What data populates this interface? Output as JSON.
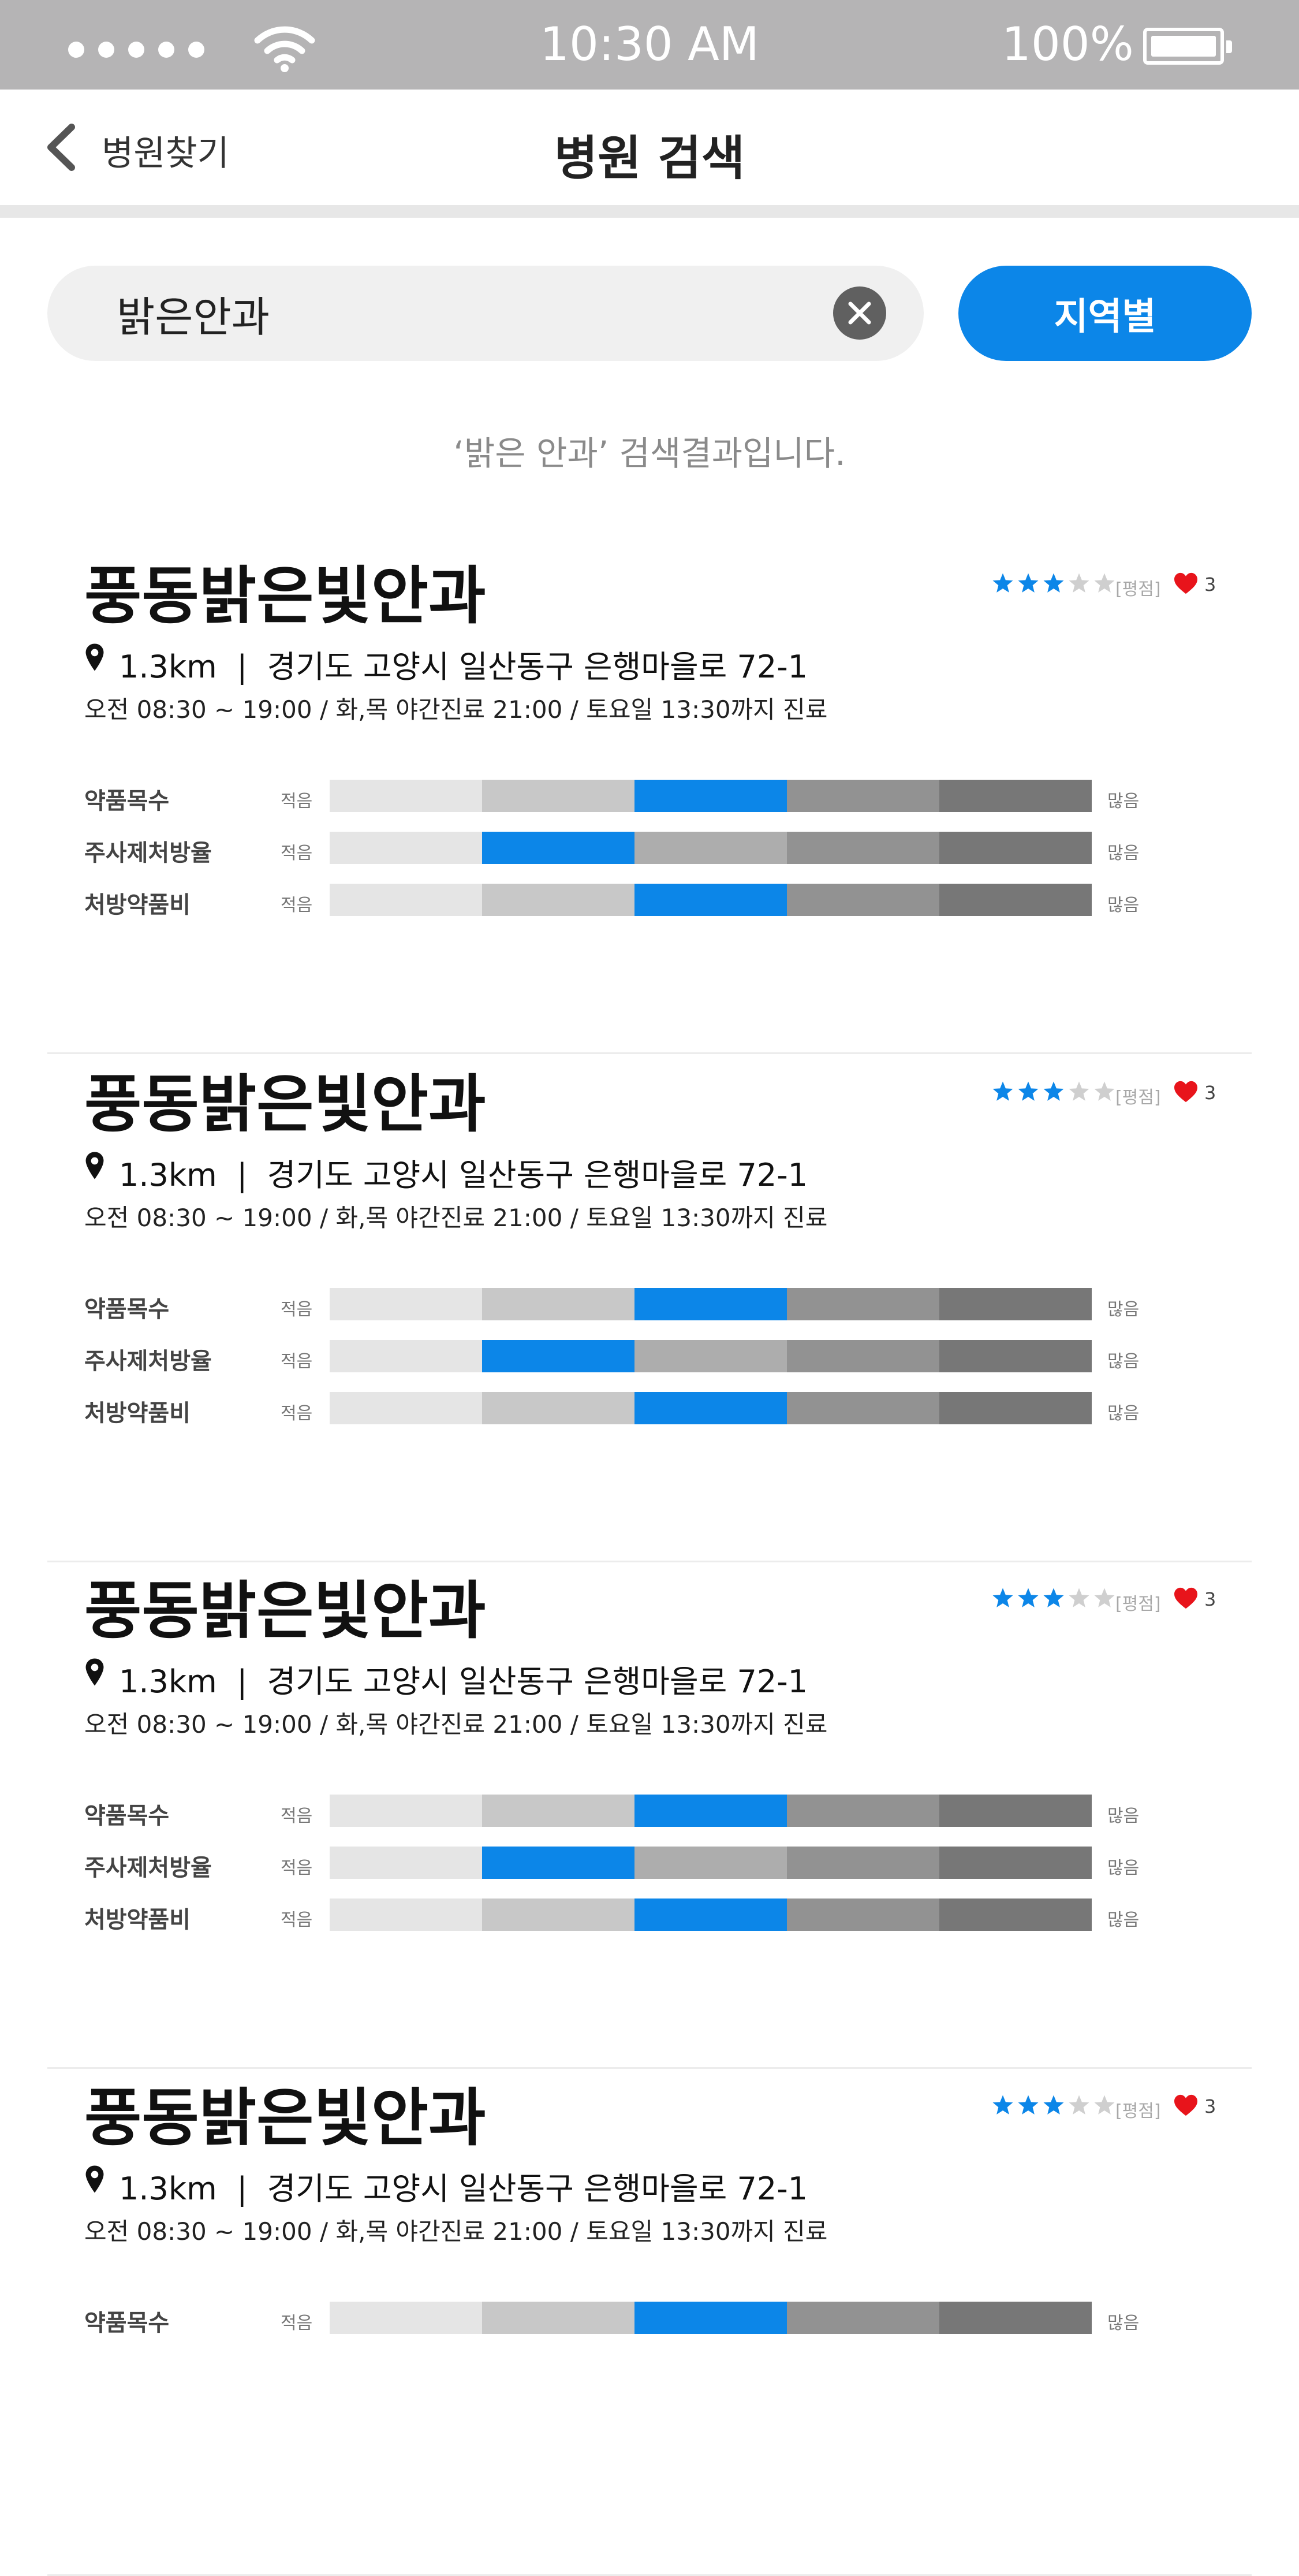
{
  "status_bar": {
    "time": "10:30 AM",
    "battery": "100%"
  },
  "nav": {
    "back_label": "병원찾기",
    "title": "병원 검색"
  },
  "search": {
    "query": "밝은안과",
    "region_button": "지역별",
    "result_message": "‘밝은 안과’ 검색결과입니다."
  },
  "colors": {
    "accent": "#0c86e8",
    "heart": "#e8141b",
    "status_bar": "#b5b4b5"
  },
  "hospitals": [
    {
      "name": "풍동밝은빛안과",
      "rating": 3,
      "max_rating": 5,
      "rating_label": "[평점]",
      "likes": "3",
      "distance": "1.3km",
      "address": "경기도 고양시 일산동구 은행마을로 72-1",
      "hours": "오전 08:30 ~ 19:00 / 화,목 야간진료 21:00 / 토요일 13:30까지 진료",
      "metrics": [
        {
          "label": "약품목수",
          "less": "적음",
          "more": "많음",
          "level": 2
        },
        {
          "label": "주사제처방율",
          "less": "적음",
          "more": "많음",
          "level": 1
        },
        {
          "label": "처방약품비",
          "less": "적음",
          "more": "많음",
          "level": 2
        }
      ]
    },
    {
      "name": "풍동밝은빛안과",
      "rating": 3,
      "max_rating": 5,
      "rating_label": "[평점]",
      "likes": "3",
      "distance": "1.3km",
      "address": "경기도 고양시 일산동구 은행마을로 72-1",
      "hours": "오전 08:30 ~ 19:00 / 화,목 야간진료 21:00 / 토요일 13:30까지 진료",
      "metrics": [
        {
          "label": "약품목수",
          "less": "적음",
          "more": "많음",
          "level": 2
        },
        {
          "label": "주사제처방율",
          "less": "적음",
          "more": "많음",
          "level": 1
        },
        {
          "label": "처방약품비",
          "less": "적음",
          "more": "많음",
          "level": 2
        }
      ]
    },
    {
      "name": "풍동밝은빛안과",
      "rating": 3,
      "max_rating": 5,
      "rating_label": "[평점]",
      "likes": "3",
      "distance": "1.3km",
      "address": "경기도 고양시 일산동구 은행마을로 72-1",
      "hours": "오전 08:30 ~ 19:00 / 화,목 야간진료 21:00 / 토요일 13:30까지 진료",
      "metrics": [
        {
          "label": "약품목수",
          "less": "적음",
          "more": "많음",
          "level": 2
        },
        {
          "label": "주사제처방율",
          "less": "적음",
          "more": "많음",
          "level": 1
        },
        {
          "label": "처방약품비",
          "less": "적음",
          "more": "많음",
          "level": 2
        }
      ]
    },
    {
      "name": "풍동밝은빛안과",
      "rating": 3,
      "max_rating": 5,
      "rating_label": "[평점]",
      "likes": "3",
      "distance": "1.3km",
      "address": "경기도 고양시 일산동구 은행마을로 72-1",
      "hours": "오전 08:30 ~ 19:00 / 화,목 야간진료 21:00 / 토요일 13:30까지 진료",
      "metrics": [
        {
          "label": "약품목수",
          "less": "적음",
          "more": "많음",
          "level": 2
        }
      ]
    }
  ]
}
